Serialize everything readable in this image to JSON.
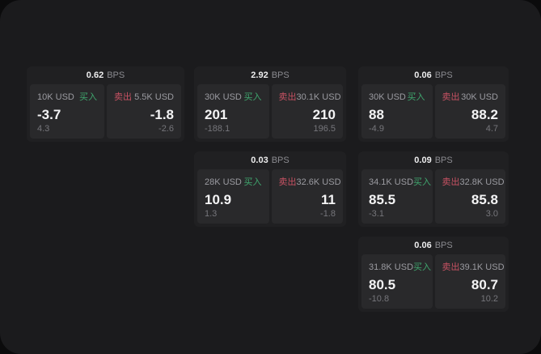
{
  "theme": {
    "outer_background": "#0b0b0c",
    "panel_background": "#1b1b1d",
    "card_background": "#202022",
    "tile_background": "#29292b",
    "buy_color": "#3fa66e",
    "sell_color": "#c85263",
    "primary_text": "#f4f4f5",
    "muted_text": "#76767b"
  },
  "labels": {
    "bps_unit": "BPS",
    "buy": "买入",
    "sell": "卖出"
  },
  "cards": [
    {
      "bps_value": "0.62",
      "bps_unit": "BPS",
      "buy": {
        "amount": "10K USD",
        "side_label": "买入",
        "price": "-3.7",
        "delta": "4.3"
      },
      "sell": {
        "side_label": "卖出",
        "amount": "5.5K USD",
        "price": "-1.8",
        "delta": "-2.6"
      }
    },
    {
      "bps_value": "2.92",
      "bps_unit": "BPS",
      "buy": {
        "amount": "30K USD",
        "side_label": "买入",
        "price": "201",
        "delta": "-188.1"
      },
      "sell": {
        "side_label": "卖出",
        "amount": "30.1K USD",
        "price": "210",
        "delta": "196.5"
      }
    },
    {
      "bps_value": "0.06",
      "bps_unit": "BPS",
      "buy": {
        "amount": "30K USD",
        "side_label": "买入",
        "price": "88",
        "delta": "-4.9"
      },
      "sell": {
        "side_label": "卖出",
        "amount": "30K USD",
        "price": "88.2",
        "delta": "4.7"
      }
    },
    {
      "bps_value": "0.03",
      "bps_unit": "BPS",
      "buy": {
        "amount": "28K USD",
        "side_label": "买入",
        "price": "10.9",
        "delta": "1.3"
      },
      "sell": {
        "side_label": "卖出",
        "amount": "32.6K USD",
        "price": "11",
        "delta": "-1.8"
      }
    },
    {
      "bps_value": "0.09",
      "bps_unit": "BPS",
      "buy": {
        "amount": "34.1K USD",
        "side_label": "买入",
        "price": "85.5",
        "delta": "-3.1"
      },
      "sell": {
        "side_label": "卖出",
        "amount": "32.8K USD",
        "price": "85.8",
        "delta": "3.0"
      }
    },
    {
      "bps_value": "0.06",
      "bps_unit": "BPS",
      "buy": {
        "amount": "31.8K USD",
        "side_label": "买入",
        "price": "80.5",
        "delta": "-10.8"
      },
      "sell": {
        "side_label": "卖出",
        "amount": "39.1K USD",
        "price": "80.7",
        "delta": "10.2"
      }
    }
  ]
}
